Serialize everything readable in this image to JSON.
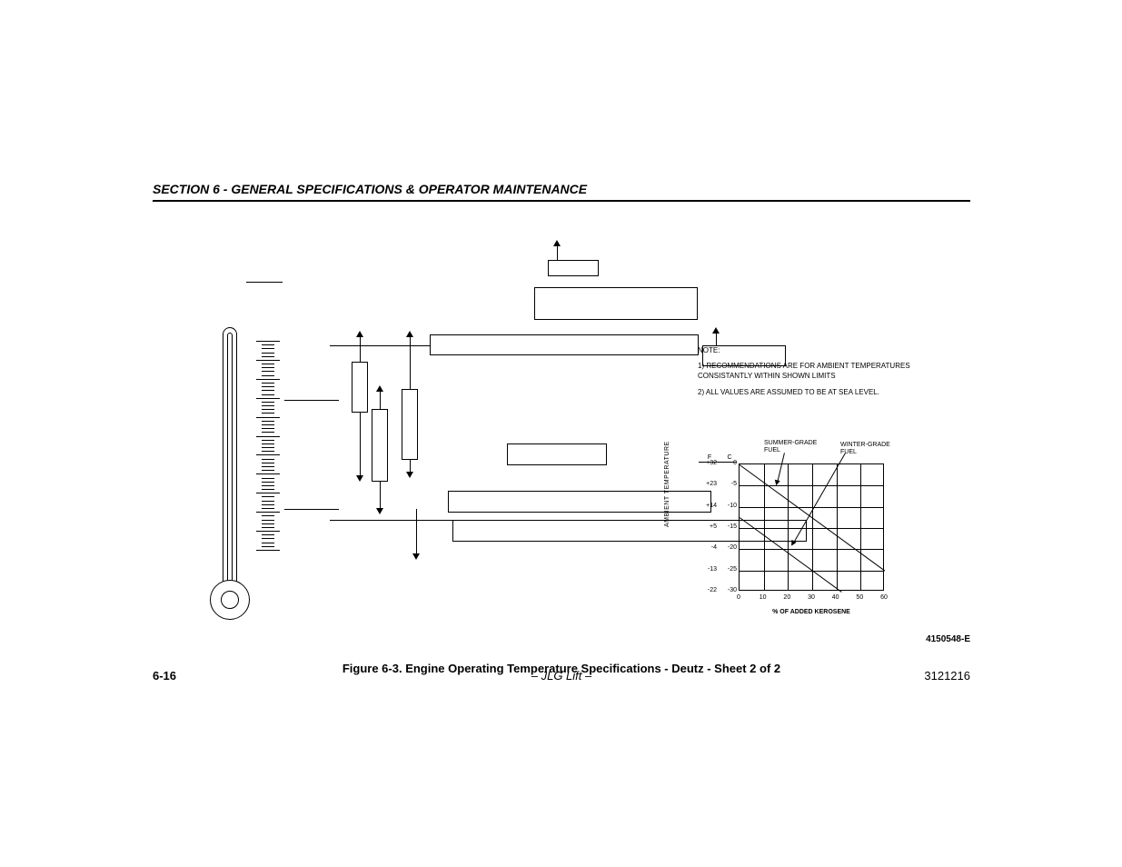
{
  "header": {
    "section_title": "SECTION 6 - GENERAL SPECIFICATIONS & OPERATOR MAINTENANCE"
  },
  "notes": {
    "title": "NOTE:",
    "line1": "1) RECOMMENDATIONS ARE FOR AMBIENT TEMPERATURES CONSISTANTLY WITHIN SHOWN LIMITS",
    "line2": "2) ALL VALUES ARE ASSUMED TO BE AT SEA LEVEL."
  },
  "fuel_chart": {
    "type": "line",
    "y_axis_label": "AMBIENT TEMPERATURE",
    "x_axis_label": "% OF ADDED KEROSENE",
    "col_f_header": "F",
    "col_c_header": "C",
    "summer_label": "SUMMER-GRADE FUEL",
    "winter_label": "WINTER-GRADE FUEL",
    "y_ticks_f": [
      "+32",
      "+23",
      "+14",
      "+5",
      "-4",
      "-13",
      "-22"
    ],
    "y_ticks_c": [
      "0",
      "-5",
      "-10",
      "-15",
      "-20",
      "-25",
      "-30"
    ],
    "x_ticks": [
      "0",
      "10",
      "20",
      "30",
      "40",
      "50",
      "60"
    ],
    "grid_rows": 6,
    "grid_cols": 6,
    "line_color": "#000000",
    "grid_color": "#000000",
    "background_color": "#ffffff",
    "summer_line": {
      "x1_pct": 0,
      "y1_row": 0,
      "x2_pct": 100,
      "y2_row": 5
    },
    "winter_line": {
      "x1_pct": 0,
      "y1_row": 2.5,
      "x2_pct": 70,
      "y2_row": 6
    },
    "summer_arrow_target": {
      "col": 1.6,
      "row": 0.8
    },
    "winter_arrow_target": {
      "col": 2.3,
      "row": 3.7
    }
  },
  "drawing_number": "4150548-E",
  "figure_caption": "Figure 6-3. Engine Operating Temperature Specifications - Deutz - Sheet 2 of 2",
  "footer": {
    "page": "6-16",
    "center": "– JLG Lift –",
    "doc": "3121216"
  },
  "colors": {
    "text": "#000000",
    "line": "#000000",
    "page_bg": "#ffffff"
  }
}
